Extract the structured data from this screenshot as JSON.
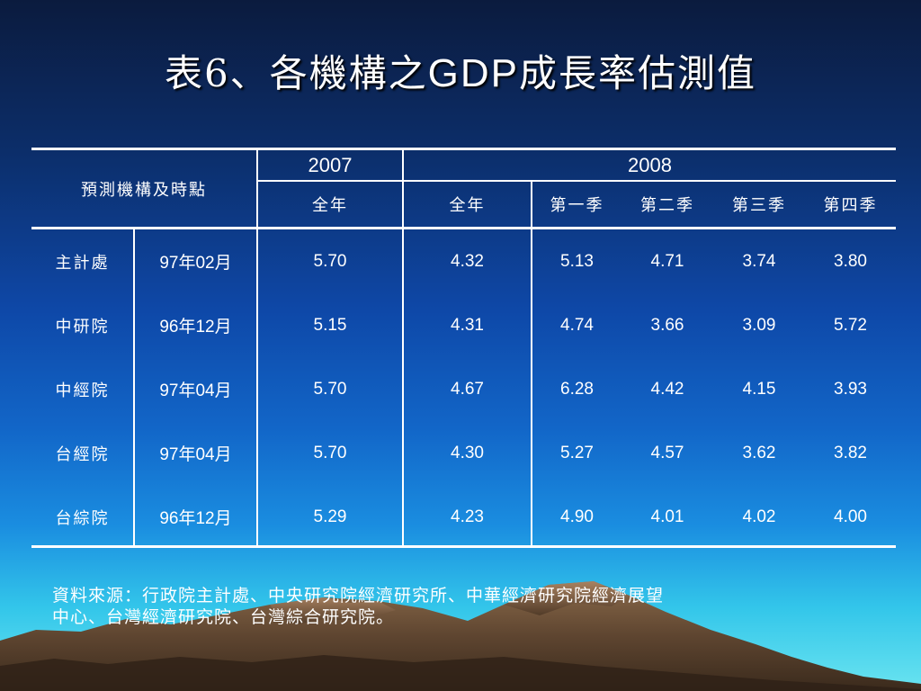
{
  "title": {
    "prefix": "表6、各機構之",
    "latin": "GDP",
    "suffix": "成長率估測值"
  },
  "table": {
    "corner_header": "預測機構及時點",
    "year_headers": [
      "2007",
      "2008"
    ],
    "sub_headers": [
      "全年",
      "全年",
      "第一季",
      "第二季",
      "第三季",
      "第四季"
    ],
    "rows": [
      {
        "agency": "主計處",
        "date": "97年02月",
        "values": [
          "5.70",
          "4.32",
          "5.13",
          "4.71",
          "3.74",
          "3.80"
        ]
      },
      {
        "agency": "中研院",
        "date": "96年12月",
        "values": [
          "5.15",
          "4.31",
          "4.74",
          "3.66",
          "3.09",
          "5.72"
        ]
      },
      {
        "agency": "中經院",
        "date": "97年04月",
        "values": [
          "5.70",
          "4.67",
          "6.28",
          "4.42",
          "4.15",
          "3.93"
        ]
      },
      {
        "agency": "台經院",
        "date": "97年04月",
        "values": [
          "5.70",
          "4.30",
          "5.27",
          "4.57",
          "3.62",
          "3.82"
        ]
      },
      {
        "agency": "台綜院",
        "date": "96年12月",
        "values": [
          "5.29",
          "4.23",
          "4.90",
          "4.01",
          "4.02",
          "4.00"
        ]
      }
    ]
  },
  "source_note": {
    "line1": "資料來源：行政院主計處、中央研究院經濟研究所、中華經濟研究院經濟展望",
    "line2": "中心、台灣經濟研究院、台灣綜合研究院。"
  }
}
